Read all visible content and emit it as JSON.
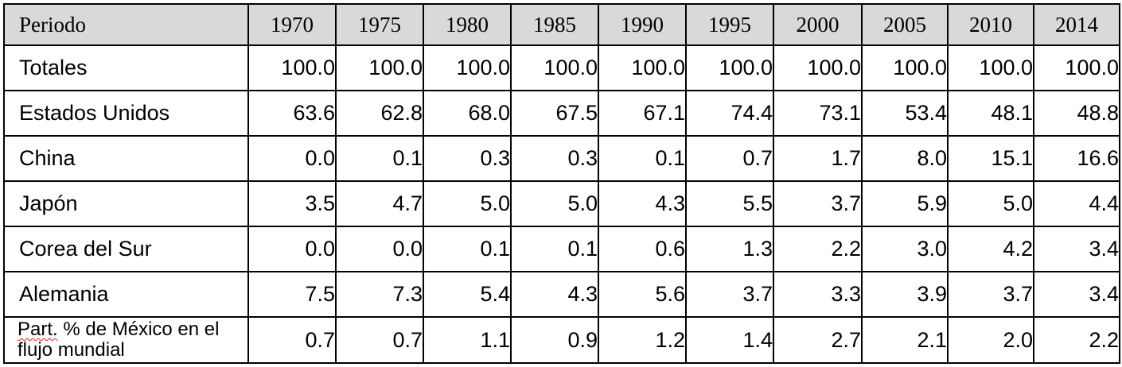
{
  "table": {
    "header_label": "Periodo",
    "years": [
      "1970",
      "1975",
      "1980",
      "1985",
      "1990",
      "1995",
      "2000",
      "2005",
      "2010",
      "2014"
    ],
    "rows": [
      {
        "label": "Totales",
        "values": [
          "100.0",
          "100.0",
          "100.0",
          "100.0",
          "100.0",
          "100.0",
          "100.0",
          "100.0",
          "100.0",
          "100.0"
        ]
      },
      {
        "label": "Estados Unidos",
        "values": [
          "63.6",
          "62.8",
          "68.0",
          "67.5",
          "67.1",
          "74.4",
          "73.1",
          "53.4",
          "48.1",
          "48.8"
        ]
      },
      {
        "label": "China",
        "values": [
          "0.0",
          "0.1",
          "0.3",
          "0.3",
          "0.1",
          "0.7",
          "1.7",
          "8.0",
          "15.1",
          "16.6"
        ]
      },
      {
        "label": "Japón",
        "values": [
          "3.5",
          "4.7",
          "5.0",
          "5.0",
          "4.3",
          "5.5",
          "3.7",
          "5.9",
          "5.0",
          "4.4"
        ]
      },
      {
        "label": "Corea del Sur",
        "values": [
          "0.0",
          "0.0",
          "0.1",
          "0.1",
          "0.6",
          "1.3",
          "2.2",
          "3.0",
          "4.2",
          "3.4"
        ]
      },
      {
        "label": "Alemania",
        "values": [
          "7.5",
          "7.3",
          "5.4",
          "4.3",
          "5.6",
          "3.7",
          "3.3",
          "3.9",
          "3.7",
          "3.4"
        ]
      },
      {
        "label_part1": "Part.",
        "label_part2": " % de México en el flujo mundial",
        "values": [
          "0.7",
          "0.7",
          "1.1",
          "0.9",
          "1.2",
          "1.4",
          "2.7",
          "2.1",
          "2.0",
          "2.2"
        ]
      }
    ]
  }
}
